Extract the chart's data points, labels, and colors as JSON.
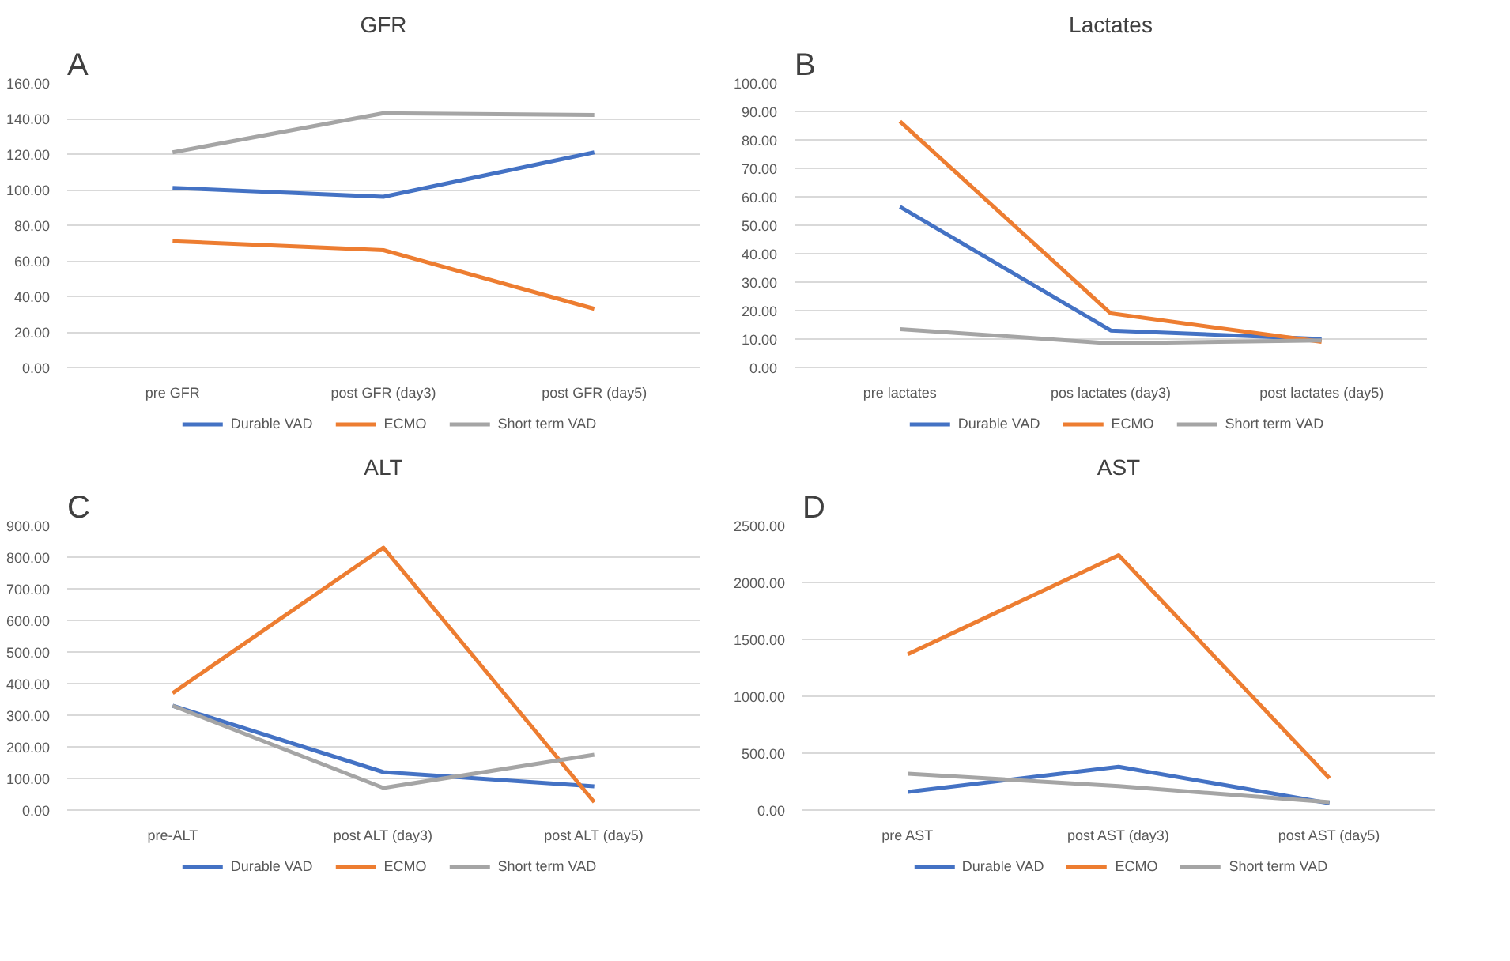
{
  "chart_data": [
    {
      "type": "line",
      "title": "GFR",
      "annotations": [
        "A"
      ],
      "categories": [
        "pre GFR",
        "post GFR (day3)",
        "post GFR (day5)"
      ],
      "series": [
        {
          "name": "Durable VAD",
          "color": "#4472c4",
          "values": [
            101,
            96,
            121
          ]
        },
        {
          "name": "ECMO",
          "color": "#ed7d31",
          "values": [
            71,
            66,
            33
          ]
        },
        {
          "name": "Short term VAD",
          "color": "#a5a5a5",
          "values": [
            121,
            143,
            142
          ]
        }
      ],
      "ylim": [
        0,
        160
      ],
      "yticks": [
        {
          "value": 0,
          "label": "0.00"
        },
        {
          "value": 20,
          "label": "20.00"
        },
        {
          "value": 40,
          "label": "40.00"
        },
        {
          "value": 60,
          "label": "60.00"
        },
        {
          "value": 80,
          "label": "80.00"
        },
        {
          "value": 100,
          "label": "100.00"
        },
        {
          "value": 120,
          "label": "120.00"
        },
        {
          "value": 140,
          "label": "140.00"
        },
        {
          "value": 160,
          "label": "160.00"
        }
      ],
      "grid": "y",
      "legend": "bottom",
      "marker": "none",
      "line_style": "solid"
    },
    {
      "type": "line",
      "title": "Lactates",
      "annotations": [
        "B"
      ],
      "categories": [
        "pre lactates",
        "pos lactates (day3)",
        "post lactates (day5)"
      ],
      "series": [
        {
          "name": "Durable VAD",
          "color": "#4472c4",
          "values": [
            56.5,
            13,
            10
          ]
        },
        {
          "name": "ECMO",
          "color": "#ed7d31",
          "values": [
            86.5,
            19,
            9
          ]
        },
        {
          "name": "Short term VAD",
          "color": "#a5a5a5",
          "values": [
            13.5,
            8.5,
            9.5
          ]
        }
      ],
      "ylim": [
        0,
        100
      ],
      "yticks": [
        {
          "value": 0,
          "label": "0.00"
        },
        {
          "value": 10,
          "label": "10.00"
        },
        {
          "value": 20,
          "label": "20.00"
        },
        {
          "value": 30,
          "label": "30.00"
        },
        {
          "value": 40,
          "label": "40.00"
        },
        {
          "value": 50,
          "label": "50.00"
        },
        {
          "value": 60,
          "label": "60.00"
        },
        {
          "value": 70,
          "label": "70.00"
        },
        {
          "value": 80,
          "label": "80.00"
        },
        {
          "value": 90,
          "label": "90.00"
        },
        {
          "value": 100,
          "label": "100.00"
        }
      ],
      "grid": "y",
      "legend": "bottom",
      "marker": "none",
      "line_style": "solid"
    },
    {
      "type": "line",
      "title": "ALT",
      "annotations": [
        "C"
      ],
      "categories": [
        "pre-ALT",
        "post ALT (day3)",
        "post ALT (day5)"
      ],
      "series": [
        {
          "name": "Durable VAD",
          "color": "#4472c4",
          "values": [
            330,
            120,
            75
          ]
        },
        {
          "name": "ECMO",
          "color": "#ed7d31",
          "values": [
            370,
            830,
            25
          ]
        },
        {
          "name": "Short term VAD",
          "color": "#a5a5a5",
          "values": [
            330,
            70,
            175
          ]
        }
      ],
      "ylim": [
        0,
        900
      ],
      "yticks": [
        {
          "value": 0,
          "label": "0.00"
        },
        {
          "value": 100,
          "label": "100.00"
        },
        {
          "value": 200,
          "label": "200.00"
        },
        {
          "value": 300,
          "label": "300.00"
        },
        {
          "value": 400,
          "label": "400.00"
        },
        {
          "value": 500,
          "label": "500.00"
        },
        {
          "value": 600,
          "label": "600.00"
        },
        {
          "value": 700,
          "label": "700.00"
        },
        {
          "value": 800,
          "label": "800.00"
        },
        {
          "value": 900,
          "label": "900.00"
        }
      ],
      "grid": "y",
      "legend": "bottom",
      "marker": "none",
      "line_style": "solid"
    },
    {
      "type": "line",
      "title": "AST",
      "annotations": [
        "D"
      ],
      "categories": [
        "pre AST",
        "post AST (day3)",
        "post AST (day5)"
      ],
      "series": [
        {
          "name": "Durable VAD",
          "color": "#4472c4",
          "values": [
            160,
            380,
            60
          ]
        },
        {
          "name": "ECMO",
          "color": "#ed7d31",
          "values": [
            1370,
            2240,
            280
          ]
        },
        {
          "name": "Short term VAD",
          "color": "#a5a5a5",
          "values": [
            320,
            210,
            70
          ]
        }
      ],
      "ylim": [
        0,
        2500
      ],
      "yticks": [
        {
          "value": 0,
          "label": "0.00"
        },
        {
          "value": 500,
          "label": "500.00"
        },
        {
          "value": 1000,
          "label": "1000.00"
        },
        {
          "value": 1500,
          "label": "1500.00"
        },
        {
          "value": 2000,
          "label": "2000.00"
        },
        {
          "value": 2500,
          "label": "2500.00"
        }
      ],
      "grid": "y",
      "legend": "bottom",
      "marker": "none",
      "line_style": "solid"
    }
  ]
}
